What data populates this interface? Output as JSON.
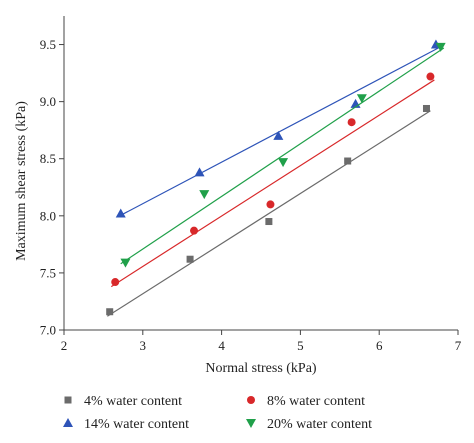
{
  "chart_data": {
    "type": "scatter",
    "xlabel": "Normal stress (kPa)",
    "ylabel": "Maximum shear stress (kPa)",
    "xlim": [
      2,
      7
    ],
    "ylim": [
      7.0,
      9.75
    ],
    "x_ticks": [
      "2",
      "3",
      "4",
      "5",
      "6",
      "7"
    ],
    "y_ticks": [
      "7.0",
      "7.5",
      "8.0",
      "8.5",
      "9.0",
      "9.5"
    ],
    "grid": false,
    "legend_position": "bottom",
    "series": [
      {
        "name": "4% water content",
        "marker": "square",
        "color": "#6b6b6b",
        "points": [
          [
            2.58,
            7.16
          ],
          [
            3.6,
            7.62
          ],
          [
            4.6,
            7.95
          ],
          [
            5.6,
            8.48
          ],
          [
            6.6,
            8.94
          ]
        ],
        "trendline": [
          [
            2.55,
            7.12
          ],
          [
            6.65,
            8.92
          ]
        ]
      },
      {
        "name": "8% water content",
        "marker": "circle",
        "color": "#d8282a",
        "points": [
          [
            2.65,
            7.42
          ],
          [
            3.65,
            7.87
          ],
          [
            4.62,
            8.1
          ],
          [
            5.65,
            8.82
          ],
          [
            6.65,
            9.22
          ]
        ],
        "trendline": [
          [
            2.6,
            7.38
          ],
          [
            6.7,
            9.19
          ]
        ]
      },
      {
        "name": "14% water content",
        "marker": "triangle-up",
        "color": "#2e54b8",
        "points": [
          [
            2.72,
            8.02
          ],
          [
            3.72,
            8.38
          ],
          [
            4.72,
            8.7
          ],
          [
            5.7,
            8.98
          ],
          [
            6.72,
            9.5
          ]
        ],
        "trendline": [
          [
            2.68,
            7.99
          ],
          [
            6.75,
            9.47
          ]
        ]
      },
      {
        "name": "20% water content",
        "marker": "triangle-down",
        "color": "#20a04a",
        "points": [
          [
            2.78,
            7.59
          ],
          [
            3.78,
            8.19
          ],
          [
            4.78,
            8.47
          ],
          [
            5.78,
            9.03
          ],
          [
            6.78,
            9.48
          ]
        ],
        "trendline": [
          [
            2.72,
            7.58
          ],
          [
            6.82,
            9.47
          ]
        ]
      }
    ]
  }
}
